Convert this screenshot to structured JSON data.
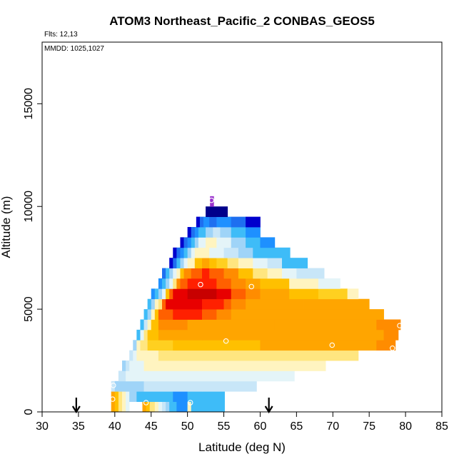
{
  "chart_data": {
    "type": "heatmap",
    "title": "ATOM3 Northeast_Pacific_2 CONBAS_GEOS5",
    "annotations": [
      "Flts: 12,13",
      "MMDD: 1025,1027"
    ],
    "xlabel": "Latitude (deg N)",
    "ylabel": "Altitude (m)",
    "xlim": [
      30,
      85
    ],
    "ylim": [
      0,
      18000
    ],
    "xticks": [
      30,
      35,
      40,
      45,
      50,
      55,
      60,
      65,
      70,
      75,
      80,
      85
    ],
    "yticks": [
      0,
      5000,
      10000,
      15000
    ],
    "grid": false,
    "legend": "none",
    "arrows_latitude": [
      34.7,
      61.2
    ],
    "colors": {
      "DB": "#00008b",
      "B": "#0000cd",
      "MB": "#1e6ff0",
      "DS": "#1e90ff",
      "S": "#3ebcf8",
      "LB": "#9fd4f8",
      "PB": "#c8e6f8",
      "VP": "#e4f4f8",
      "W": "#ffffff",
      "PY": "#fff4c0",
      "Y": "#ffe680",
      "G": "#ffd020",
      "YO": "#ffc000",
      "O": "#ffa500",
      "DO": "#ff8c00",
      "OR": "#ff6000",
      "R": "#ff2000",
      "RD": "#e80000",
      "DR": "#c80000",
      "P": "#9a32cd"
    },
    "rows": [
      {
        "y0": 0,
        "y1": 500,
        "cells": [
          [
            39.5,
            40.0,
            "O"
          ],
          [
            40.0,
            40.5,
            "YO"
          ],
          [
            40.5,
            41.0,
            "Y"
          ],
          [
            41.0,
            41.5,
            "PY"
          ],
          [
            41.5,
            42.0,
            "VP"
          ],
          [
            43.8,
            44.3,
            "O"
          ],
          [
            44.3,
            44.8,
            "YO"
          ],
          [
            44.8,
            45.5,
            "Y"
          ],
          [
            45.5,
            46.0,
            "PY"
          ],
          [
            46.0,
            46.5,
            "VP"
          ],
          [
            46.5,
            47.0,
            "PB"
          ],
          [
            47.0,
            47.5,
            "LB"
          ],
          [
            47.5,
            48.5,
            "S"
          ],
          [
            48.5,
            50.0,
            "DS"
          ],
          [
            50.0,
            50.5,
            "PY"
          ],
          [
            50.5,
            52.0,
            "S"
          ],
          [
            52.0,
            55.1,
            "S"
          ]
        ]
      },
      {
        "y0": 500,
        "y1": 1000,
        "cells": [
          [
            39.5,
            40.0,
            "O"
          ],
          [
            40.0,
            40.5,
            "YO"
          ],
          [
            40.5,
            41.0,
            "Y"
          ],
          [
            41.0,
            41.5,
            "PY"
          ],
          [
            41.5,
            42.0,
            "VP"
          ],
          [
            42.0,
            43.0,
            "LB"
          ],
          [
            43.0,
            44.0,
            "S"
          ],
          [
            44.0,
            48.0,
            "S"
          ],
          [
            48.0,
            50.0,
            "DS"
          ],
          [
            50.0,
            55.1,
            "S"
          ]
        ]
      },
      {
        "y0": 1000,
        "y1": 1500,
        "cells": [
          [
            39.5,
            40.0,
            "PB"
          ],
          [
            40.0,
            44.0,
            "LB"
          ],
          [
            44.0,
            52.0,
            "PB"
          ],
          [
            52.0,
            59.5,
            "PB"
          ]
        ]
      },
      {
        "y0": 1500,
        "y1": 2000,
        "cells": [
          [
            40.5,
            41.5,
            "PB"
          ],
          [
            41.5,
            48.0,
            "VP"
          ],
          [
            48.0,
            56.0,
            "VP"
          ],
          [
            56.0,
            64.7,
            "VP"
          ]
        ]
      },
      {
        "y0": 2000,
        "y1": 2500,
        "cells": [
          [
            41.0,
            41.5,
            "LB"
          ],
          [
            41.5,
            42.0,
            "PB"
          ],
          [
            42.0,
            44.0,
            "VP"
          ],
          [
            44.0,
            52.0,
            "PY"
          ],
          [
            52.0,
            60.0,
            "PY"
          ],
          [
            60.0,
            69.0,
            "PY"
          ]
        ]
      },
      {
        "y0": 2500,
        "y1": 3000,
        "cells": [
          [
            42.0,
            42.5,
            "PB"
          ],
          [
            42.5,
            43.0,
            "VP"
          ],
          [
            43.0,
            46.0,
            "PY"
          ],
          [
            46.0,
            52.0,
            "Y"
          ],
          [
            52.0,
            58.0,
            "Y"
          ],
          [
            58.0,
            66.0,
            "Y"
          ],
          [
            66.0,
            73.5,
            "Y"
          ]
        ]
      },
      {
        "y0": 3000,
        "y1": 3500,
        "cells": [
          [
            42.5,
            43.0,
            "LB"
          ],
          [
            43.0,
            43.5,
            "PY"
          ],
          [
            43.5,
            44.5,
            "Y"
          ],
          [
            44.5,
            48.0,
            "G"
          ],
          [
            48.0,
            54.0,
            "YO"
          ],
          [
            54.0,
            60.0,
            "YO"
          ],
          [
            60.0,
            68.0,
            "O"
          ],
          [
            68.0,
            76.0,
            "O"
          ],
          [
            76.0,
            78.6,
            "DO"
          ]
        ]
      },
      {
        "y0": 3500,
        "y1": 4000,
        "cells": [
          [
            43.0,
            43.5,
            "S"
          ],
          [
            43.5,
            44.0,
            "VP"
          ],
          [
            44.0,
            44.5,
            "Y"
          ],
          [
            44.5,
            46.0,
            "YO"
          ],
          [
            46.0,
            52.0,
            "O"
          ],
          [
            52.0,
            56.0,
            "O"
          ],
          [
            56.0,
            64.0,
            "O"
          ],
          [
            64.0,
            72.0,
            "O"
          ],
          [
            72.0,
            77.0,
            "O"
          ],
          [
            77.0,
            79.0,
            "DO"
          ]
        ]
      },
      {
        "y0": 4000,
        "y1": 4500,
        "cells": [
          [
            43.5,
            44.0,
            "S"
          ],
          [
            44.0,
            44.5,
            "PB"
          ],
          [
            44.5,
            45.0,
            "PY"
          ],
          [
            45.0,
            46.0,
            "YO"
          ],
          [
            46.0,
            50.0,
            "DO"
          ],
          [
            50.0,
            54.0,
            "O"
          ],
          [
            54.0,
            62.0,
            "O"
          ],
          [
            62.0,
            70.0,
            "O"
          ],
          [
            70.0,
            76.0,
            "O"
          ],
          [
            76.0,
            79.3,
            "DO"
          ]
        ]
      },
      {
        "y0": 4500,
        "y1": 5000,
        "cells": [
          [
            44.0,
            44.5,
            "S"
          ],
          [
            44.5,
            45.0,
            "LB"
          ],
          [
            45.0,
            45.5,
            "PY"
          ],
          [
            45.5,
            46.0,
            "YO"
          ],
          [
            46.0,
            48.0,
            "OR"
          ],
          [
            48.0,
            52.0,
            "R"
          ],
          [
            52.0,
            54.0,
            "OR"
          ],
          [
            54.0,
            56.0,
            "DO"
          ],
          [
            56.0,
            64.0,
            "O"
          ],
          [
            64.0,
            70.0,
            "O"
          ],
          [
            70.0,
            77.0,
            "O"
          ]
        ]
      },
      {
        "y0": 5000,
        "y1": 5500,
        "cells": [
          [
            44.5,
            45.0,
            "S"
          ],
          [
            45.0,
            45.5,
            "LB"
          ],
          [
            45.5,
            46.0,
            "PY"
          ],
          [
            46.0,
            46.5,
            "Y"
          ],
          [
            46.5,
            47.0,
            "OR"
          ],
          [
            47.0,
            52.0,
            "RD"
          ],
          [
            52.0,
            55.0,
            "R"
          ],
          [
            55.0,
            56.0,
            "OR"
          ],
          [
            56.0,
            58.0,
            "DO"
          ],
          [
            58.0,
            66.0,
            "O"
          ],
          [
            66.0,
            75.0,
            "O"
          ]
        ]
      },
      {
        "y0": 5500,
        "y1": 6000,
        "cells": [
          [
            45.0,
            45.5,
            "DS"
          ],
          [
            45.5,
            46.0,
            "S"
          ],
          [
            46.0,
            46.5,
            "LB"
          ],
          [
            46.5,
            47.0,
            "VP"
          ],
          [
            47.0,
            47.5,
            "YO"
          ],
          [
            47.5,
            48.0,
            "OR"
          ],
          [
            48.0,
            50.0,
            "RD"
          ],
          [
            50.0,
            54.0,
            "DR"
          ],
          [
            54.0,
            56.0,
            "RD"
          ],
          [
            56.0,
            58.0,
            "OR"
          ],
          [
            58.0,
            60.0,
            "DO"
          ],
          [
            60.0,
            64.0,
            "O"
          ],
          [
            64.0,
            68.0,
            "YO"
          ],
          [
            68.0,
            72.0,
            "G"
          ],
          [
            72.0,
            73.5,
            "PY"
          ]
        ]
      },
      {
        "y0": 6000,
        "y1": 6500,
        "cells": [
          [
            46.0,
            46.5,
            "DS"
          ],
          [
            46.5,
            47.0,
            "S"
          ],
          [
            47.0,
            47.5,
            "LB"
          ],
          [
            47.5,
            48.0,
            "VP"
          ],
          [
            48.0,
            48.5,
            "Y"
          ],
          [
            48.5,
            49.0,
            "DO"
          ],
          [
            49.0,
            50.0,
            "OR"
          ],
          [
            50.0,
            54.0,
            "R"
          ],
          [
            54.0,
            56.0,
            "OR"
          ],
          [
            56.0,
            58.0,
            "DO"
          ],
          [
            58.0,
            60.0,
            "O"
          ],
          [
            60.0,
            64.0,
            "YO"
          ],
          [
            64.0,
            68.0,
            "PY"
          ],
          [
            68.0,
            71.0,
            "VP"
          ]
        ]
      },
      {
        "y0": 6500,
        "y1": 7000,
        "cells": [
          [
            46.5,
            47.0,
            "MB"
          ],
          [
            47.0,
            47.5,
            "S"
          ],
          [
            47.5,
            48.0,
            "LB"
          ],
          [
            48.0,
            48.5,
            "VP"
          ],
          [
            48.5,
            49.0,
            "PY"
          ],
          [
            49.0,
            49.5,
            "YO"
          ],
          [
            49.5,
            50.5,
            "DO"
          ],
          [
            50.5,
            52.0,
            "OR"
          ],
          [
            52.0,
            53.0,
            "R"
          ],
          [
            53.0,
            55.0,
            "OR"
          ],
          [
            55.0,
            57.0,
            "DO"
          ],
          [
            57.0,
            59.0,
            "YO"
          ],
          [
            59.0,
            61.0,
            "Y"
          ],
          [
            61.0,
            63.0,
            "PY"
          ],
          [
            63.0,
            65.0,
            "VP"
          ],
          [
            65.0,
            67.0,
            "PB"
          ],
          [
            67.0,
            68.8,
            "PB"
          ]
        ]
      },
      {
        "y0": 7000,
        "y1": 7500,
        "cells": [
          [
            47.5,
            48.0,
            "B"
          ],
          [
            48.0,
            48.5,
            "MB"
          ],
          [
            48.5,
            49.0,
            "S"
          ],
          [
            49.0,
            49.5,
            "LB"
          ],
          [
            49.5,
            50.0,
            "VP"
          ],
          [
            50.0,
            51.0,
            "PY"
          ],
          [
            51.0,
            52.0,
            "YO"
          ],
          [
            52.0,
            53.0,
            "O"
          ],
          [
            53.0,
            54.0,
            "YO"
          ],
          [
            54.0,
            55.5,
            "G"
          ],
          [
            55.5,
            57.0,
            "Y"
          ],
          [
            57.0,
            59.0,
            "PY"
          ],
          [
            59.0,
            61.0,
            "VP"
          ],
          [
            61.0,
            63.0,
            "PB"
          ],
          [
            63.0,
            66.5,
            "S"
          ]
        ]
      },
      {
        "y0": 7500,
        "y1": 8000,
        "cells": [
          [
            48.0,
            48.5,
            "B"
          ],
          [
            48.5,
            49.0,
            "MB"
          ],
          [
            49.0,
            49.5,
            "DS"
          ],
          [
            49.5,
            50.0,
            "S"
          ],
          [
            50.0,
            50.5,
            "LB"
          ],
          [
            50.5,
            51.0,
            "VP"
          ],
          [
            51.0,
            52.0,
            "PY"
          ],
          [
            52.0,
            53.0,
            "PY"
          ],
          [
            53.0,
            55.0,
            "VP"
          ],
          [
            55.0,
            57.0,
            "PB"
          ],
          [
            57.0,
            59.0,
            "LB"
          ],
          [
            59.0,
            61.0,
            "S"
          ],
          [
            61.0,
            64.1,
            "S"
          ]
        ]
      },
      {
        "y0": 8000,
        "y1": 8500,
        "cells": [
          [
            49.0,
            49.5,
            "B"
          ],
          [
            49.5,
            50.0,
            "MB"
          ],
          [
            50.0,
            50.5,
            "DS"
          ],
          [
            50.5,
            51.0,
            "S"
          ],
          [
            51.0,
            51.5,
            "LB"
          ],
          [
            51.5,
            52.5,
            "VP"
          ],
          [
            52.5,
            54.0,
            "PY"
          ],
          [
            54.0,
            56.0,
            "VP"
          ],
          [
            56.0,
            58.0,
            "LB"
          ],
          [
            58.0,
            60.0,
            "S"
          ],
          [
            60.0,
            62.0,
            "DS"
          ]
        ]
      },
      {
        "y0": 8500,
        "y1": 9000,
        "cells": [
          [
            50.0,
            50.5,
            "B"
          ],
          [
            50.5,
            51.0,
            "MB"
          ],
          [
            51.0,
            51.5,
            "DS"
          ],
          [
            51.5,
            52.5,
            "S"
          ],
          [
            52.5,
            53.5,
            "LB"
          ],
          [
            53.5,
            54.5,
            "PB"
          ],
          [
            54.5,
            56.0,
            "LB"
          ],
          [
            56.0,
            58.0,
            "S"
          ],
          [
            58.0,
            60.0,
            "DS"
          ]
        ]
      },
      {
        "y0": 9000,
        "y1": 9500,
        "cells": [
          [
            51.2,
            51.7,
            "B"
          ],
          [
            51.7,
            52.2,
            "MB"
          ],
          [
            52.2,
            53.0,
            "DS"
          ],
          [
            53.0,
            54.0,
            "MB"
          ],
          [
            54.0,
            56.0,
            "DS"
          ],
          [
            56.0,
            58.0,
            "MB"
          ],
          [
            58.0,
            60.0,
            "B"
          ]
        ]
      },
      {
        "y0": 9500,
        "y1": 10000,
        "cells": [
          [
            52.5,
            55.5,
            "DB"
          ]
        ]
      },
      {
        "y0": 10000,
        "y1": 10500,
        "cells": [
          [
            53.1,
            53.6,
            "P"
          ]
        ]
      }
    ],
    "markers": [
      {
        "lat": 39.7,
        "alt": 620
      },
      {
        "lat": 44.3,
        "alt": 450
      },
      {
        "lat": 50.4,
        "alt": 450
      },
      {
        "lat": 39.8,
        "alt": 1290
      },
      {
        "lat": 51.8,
        "alt": 6200
      },
      {
        "lat": 58.8,
        "alt": 6100
      },
      {
        "lat": 55.3,
        "alt": 3450
      },
      {
        "lat": 69.9,
        "alt": 3250
      },
      {
        "lat": 79.2,
        "alt": 4200
      },
      {
        "lat": 78.2,
        "alt": 3100
      },
      {
        "lat": 53.3,
        "alt": 10300
      }
    ]
  }
}
